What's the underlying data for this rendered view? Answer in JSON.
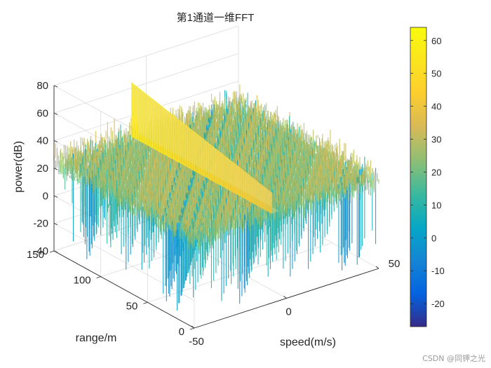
{
  "chart_data": {
    "type": "surface",
    "title": "第1通道一维FFT",
    "xlabel": "speed(m/s)",
    "ylabel": "range/m",
    "zlabel": "power(dB)",
    "x_ticks": [
      "-50",
      "0",
      "50"
    ],
    "y_ticks": [
      "0",
      "50",
      "100",
      "150"
    ],
    "z_ticks": [
      "-40",
      "-20",
      "0",
      "20",
      "40",
      "60",
      "80"
    ],
    "colorbar_ticks": [
      "-20",
      "-10",
      "0",
      "10",
      "20",
      "30",
      "40",
      "50",
      "60"
    ],
    "xlim": [
      -50,
      50
    ],
    "ylim": [
      0,
      150
    ],
    "zlim": [
      -40,
      80
    ],
    "clim": [
      -27,
      64
    ],
    "colormap": "parula",
    "grid": true,
    "series": [
      {
        "noise_floor_db": 25,
        "noise_min_db": -35,
        "noise_max_db": 45
      },
      {
        "peak_speed": -8,
        "peak_db_at_range_0": 40,
        "peak_db_at_range_150": 64
      }
    ]
  },
  "watermark": "CSDN @同钾之光"
}
